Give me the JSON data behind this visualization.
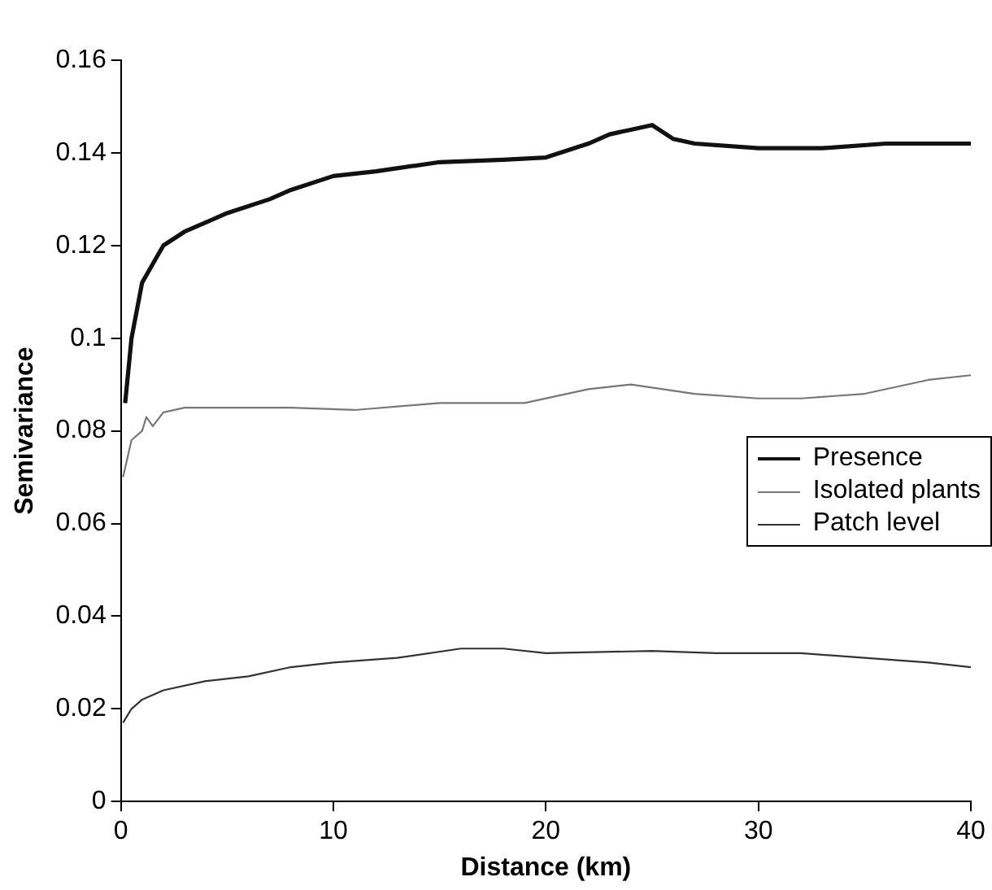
{
  "chart_data": {
    "type": "line",
    "xlabel": "Distance (km)",
    "ylabel": "Semivariance",
    "xlim": [
      0,
      40
    ],
    "xticks": [
      0,
      10,
      20,
      30,
      40
    ],
    "ylim": [
      0,
      0.16
    ],
    "yticks": [
      0,
      0.02,
      0.04,
      0.06,
      0.08,
      0.1,
      0.12,
      0.14,
      0.16
    ],
    "grid": false,
    "legend": "right",
    "marker": "none",
    "line_style": "solid",
    "series": [
      {
        "name": "Presence",
        "color": "#111111",
        "x": [
          0.2,
          0.5,
          1,
          1.5,
          2,
          3,
          4,
          5,
          7,
          8,
          10,
          12,
          15,
          18,
          20,
          22,
          23,
          24,
          25,
          26,
          27,
          30,
          33,
          36,
          38,
          40
        ],
        "values": [
          0.086,
          0.1,
          0.112,
          0.116,
          0.12,
          0.123,
          0.125,
          0.127,
          0.13,
          0.132,
          0.135,
          0.136,
          0.138,
          0.1385,
          0.139,
          0.142,
          0.144,
          0.145,
          0.146,
          0.143,
          0.142,
          0.141,
          0.141,
          0.142,
          0.142,
          0.142
        ]
      },
      {
        "name": "Isolated plants",
        "color": "#777777",
        "x": [
          0.1,
          0.5,
          1,
          1.2,
          1.5,
          2,
          3,
          5,
          8,
          11,
          15,
          19,
          22,
          24,
          27,
          30,
          32,
          35,
          38,
          40
        ],
        "values": [
          0.07,
          0.078,
          0.08,
          0.083,
          0.081,
          0.084,
          0.085,
          0.085,
          0.085,
          0.0845,
          0.086,
          0.086,
          0.089,
          0.09,
          0.088,
          0.087,
          0.087,
          0.088,
          0.091,
          0.092
        ]
      },
      {
        "name": "Patch level",
        "color": "#333333",
        "x": [
          0.1,
          0.5,
          1,
          2,
          4,
          6,
          8,
          10,
          13,
          16,
          18,
          20,
          25,
          28,
          32,
          35,
          38,
          40
        ],
        "values": [
          0.017,
          0.02,
          0.022,
          0.024,
          0.026,
          0.027,
          0.029,
          0.03,
          0.031,
          0.033,
          0.033,
          0.032,
          0.0325,
          0.032,
          0.032,
          0.031,
          0.03,
          0.029
        ]
      }
    ]
  }
}
